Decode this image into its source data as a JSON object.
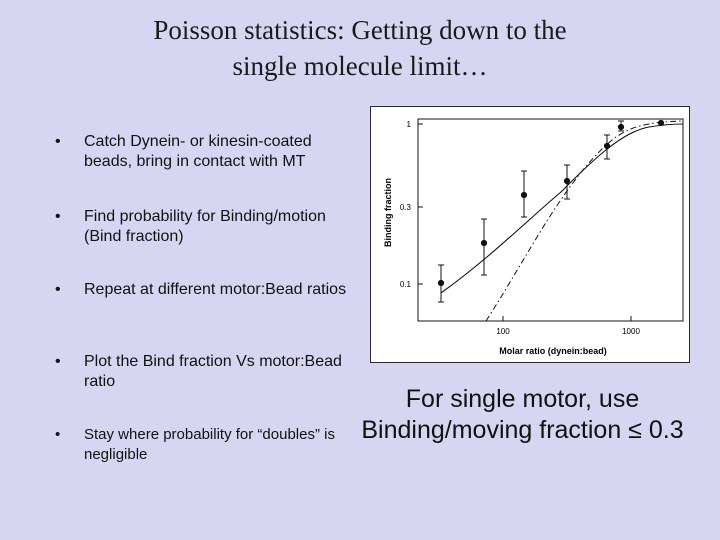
{
  "title": {
    "line1": "Poisson statistics: Getting down to the",
    "line2": "single molecule limit…"
  },
  "bullets": [
    {
      "symbol": "•",
      "text": "Catch Dynein- or kinesin-coated beads, bring in contact with  MT"
    },
    {
      "symbol": "•",
      "text": "Find probability for Binding/motion (Bind fraction)"
    },
    {
      "symbol": "•",
      "text": "Repeat at different motor:Bead ratios"
    },
    {
      "symbol": "•",
      "text": "Plot the Bind fraction Vs motor:Bead ratio"
    },
    {
      "symbol": "•",
      "text": "Stay where probability for “doubles” is negligible"
    }
  ],
  "figure": {
    "ylabel": "Binding fraction",
    "xlabel": "Molar ratio (dynein:bead)",
    "yticks": [
      "1",
      "0.3",
      "0.1"
    ],
    "xticks": [
      "100",
      "1000"
    ]
  },
  "note": {
    "line1": "For single motor, use",
    "line2": "Binding/moving fraction ≤ 0.3"
  }
}
